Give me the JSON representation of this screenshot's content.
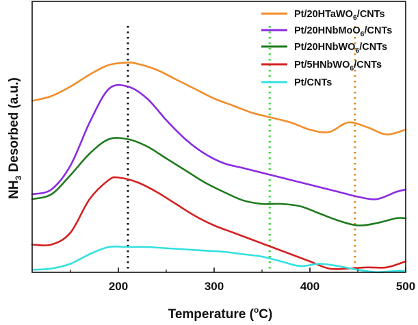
{
  "chart_data": {
    "type": "line",
    "title": "",
    "xlabel": "Temperature (°C)",
    "xlabel_parts": {
      "main": "Temperature (",
      "sup": "o",
      "end": "C)"
    },
    "ylabel": "NH3 Desorbed (a.u.)",
    "ylabel_parts": {
      "pre": "NH",
      "sub": "3",
      "post": " Desorbed (a.u.)"
    },
    "xlim": [
      110,
      500
    ],
    "ylim": [
      0,
      100
    ],
    "x_ticks": [
      200,
      300,
      400,
      500
    ],
    "y_ticks": [],
    "legend_position": "top-right",
    "series": [
      {
        "name": "Pt/20HTaWO6/CNTs",
        "name_parts": {
          "pre": "Pt/20HTaWO",
          "sub": "6",
          "post": "/CNTs"
        },
        "color": "#f28c28",
        "x": [
          110,
          130,
          150,
          170,
          190,
          210,
          220,
          240,
          260,
          280,
          300,
          320,
          340,
          360,
          380,
          400,
          420,
          440,
          460,
          480,
          500
        ],
        "y": [
          71,
          73,
          77,
          82,
          86,
          87,
          86.5,
          84,
          80,
          76,
          72,
          69,
          66,
          64,
          62,
          59,
          58,
          62,
          60,
          57,
          59
        ]
      },
      {
        "name": "Pt/20HNbMoO6/CNTs",
        "name_parts": {
          "pre": "Pt/20HNbMoO",
          "sub": "6",
          "post": "/CNTs"
        },
        "color": "#8a2be2",
        "x": [
          110,
          130,
          150,
          170,
          190,
          210,
          230,
          250,
          270,
          290,
          310,
          330,
          350,
          370,
          390,
          410,
          430,
          450,
          470,
          490,
          500
        ],
        "y": [
          32,
          34,
          44,
          62,
          76,
          77,
          72,
          63,
          55,
          49,
          45,
          43,
          41,
          39,
          37,
          35,
          33,
          31,
          30,
          33,
          34
        ]
      },
      {
        "name": "Pt/20HNbWO6/CNTs",
        "name_parts": {
          "pre": "Pt/20HNbWO",
          "sub": "6",
          "post": "/CNTs"
        },
        "color": "#1e7a1e",
        "x": [
          110,
          130,
          150,
          170,
          190,
          210,
          230,
          250,
          270,
          290,
          310,
          330,
          350,
          370,
          390,
          410,
          430,
          450,
          470,
          490,
          500
        ],
        "y": [
          30,
          32,
          40,
          49,
          55,
          55,
          52,
          47,
          42,
          37,
          33,
          29.5,
          28,
          28,
          27,
          24,
          21,
          19,
          20,
          22,
          22
        ]
      },
      {
        "name": "Pt/5HNbWO6/CNTs",
        "name_parts": {
          "pre": "Pt/5HNbWO",
          "sub": "6",
          "post": "/CNTs"
        },
        "color": "#d42020",
        "x": [
          110,
          130,
          150,
          170,
          190,
          200,
          220,
          240,
          260,
          280,
          300,
          320,
          340,
          360,
          380,
          400,
          420,
          440,
          460,
          480,
          500
        ],
        "y": [
          11,
          11,
          16,
          30,
          38,
          39,
          37,
          33,
          28,
          23,
          19,
          16,
          13,
          10,
          7,
          4,
          1,
          1,
          1.5,
          1.5,
          4
        ]
      },
      {
        "name": "Pt/CNTs",
        "name_parts": {
          "pre": "Pt/CNTs",
          "sub": "",
          "post": ""
        },
        "color": "#33e0e0",
        "x": [
          110,
          130,
          150,
          170,
          190,
          210,
          230,
          250,
          270,
          290,
          310,
          330,
          350,
          370,
          390,
          410,
          430,
          450,
          470,
          490,
          500
        ],
        "y": [
          0.5,
          1,
          3,
          7,
          10,
          10,
          10,
          9.5,
          9,
          8.5,
          8,
          7,
          6,
          4,
          2,
          3,
          2,
          0.5,
          -0.5,
          0,
          0
        ]
      }
    ],
    "reference_lines": [
      {
        "x": 210,
        "color": "#111111",
        "style": "dotted"
      },
      {
        "x": 358,
        "color": "#33dd33",
        "style": "dotted"
      },
      {
        "x": 447,
        "color": "#e08a20",
        "style": "dotted"
      }
    ]
  }
}
